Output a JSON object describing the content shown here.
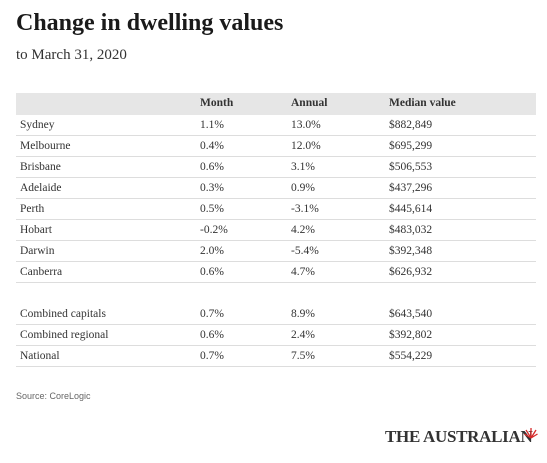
{
  "header": {
    "title": "Change in dwelling values",
    "subtitle": "to March 31, 2020"
  },
  "table": {
    "columns": [
      "Month",
      "Annual",
      "Median value"
    ],
    "groups": [
      [
        [
          "Sydney",
          "1.1%",
          "13.0%",
          "$882,849"
        ],
        [
          "Melbourne",
          "0.4%",
          "12.0%",
          "$695,299"
        ],
        [
          "Brisbane",
          "0.6%",
          "3.1%",
          "$506,553"
        ],
        [
          "Adelaide",
          "0.3%",
          "0.9%",
          "$437,296"
        ],
        [
          "Perth",
          "0.5%",
          "-3.1%",
          "$445,614"
        ],
        [
          "Hobart",
          "-0.2%",
          "4.2%",
          "$483,032"
        ],
        [
          "Darwin",
          "2.0%",
          "-5.4%",
          "$392,348"
        ],
        [
          "Canberra",
          "0.6%",
          "4.7%",
          "$626,932"
        ]
      ],
      [
        [
          "Combined capitals",
          "0.7%",
          "8.9%",
          "$643,540"
        ],
        [
          "Combined regional",
          "0.6%",
          "2.4%",
          "$392,802"
        ],
        [
          "National",
          "0.7%",
          "7.5%",
          "$554,229"
        ]
      ]
    ]
  },
  "footer": {
    "source": "Source: CoreLogic",
    "brand": "THE AUSTRALIAN"
  }
}
